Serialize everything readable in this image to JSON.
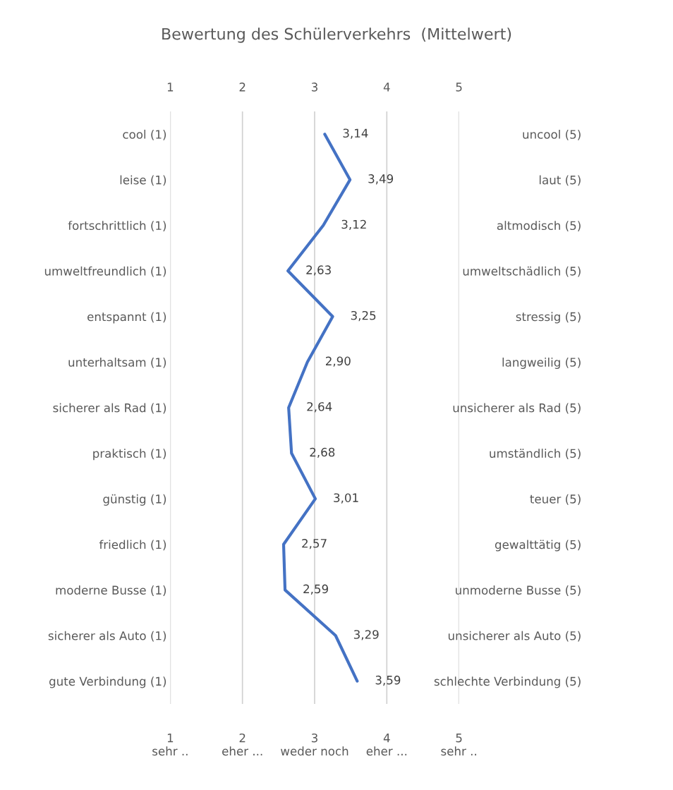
{
  "chart_data": {
    "type": "line",
    "orientation": "horizontal",
    "title": "Bewertung des Schülerverkehrs  (Mittelwert)",
    "categories": [
      "cool (1)",
      "leise (1)",
      "fortschrittlich (1)",
      "umweltfreundlich (1)",
      "entspannt (1)",
      "unterhaltsam (1)",
      "sicherer als Rad (1)",
      "praktisch (1)",
      "günstig (1)",
      "friedlich (1)",
      "moderne Busse (1)",
      "sicherer als Auto (1)",
      "gute Verbindung (1)"
    ],
    "y2_categories": [
      "uncool (5)",
      "laut (5)",
      "altmodisch (5)",
      "umweltschädlich (5)",
      "stressig (5)",
      "langweilig (5)",
      "unsicherer als Rad (5)",
      "umständlich (5)",
      "teuer (5)",
      "gewalttätig (5)",
      "unmoderne Busse (5)",
      "unsicherer als Auto (5)",
      "schlechte Verbindung (5)"
    ],
    "series": [
      {
        "color": "#4472c4",
        "values": [
          3.14,
          3.49,
          3.12,
          2.63,
          3.25,
          2.9,
          2.64,
          2.68,
          3.01,
          2.57,
          2.59,
          3.29,
          3.59
        ],
        "value_labels": [
          "3,14",
          "3,49",
          "3,12",
          "2,63",
          "3,25",
          "2,90",
          "2,64",
          "2,68",
          "3,01",
          "2,57",
          "2,59",
          "3,29",
          "3,59"
        ]
      }
    ],
    "xlim": [
      1,
      5
    ],
    "xticks": [
      {
        "value": 1,
        "label": "1\nsehr .."
      },
      {
        "value": 2,
        "label": "2\neher ..."
      },
      {
        "value": 3,
        "label": "3\nweder noch"
      },
      {
        "value": 4,
        "label": "4\neher ..."
      },
      {
        "value": 5,
        "label": "5\nsehr .."
      }
    ],
    "x2lim": [
      1,
      5
    ],
    "x2ticks": [
      1,
      2,
      3,
      4,
      5
    ],
    "grid": "x",
    "marker": "none",
    "line_style": "solid",
    "legend": false
  }
}
